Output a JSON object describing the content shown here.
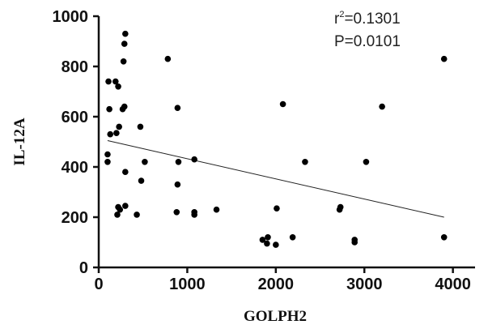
{
  "chart_data": {
    "type": "scatter",
    "xlabel": "GOLPH2",
    "ylabel": "IL-12A",
    "xlim": [
      0,
      4250
    ],
    "ylim": [
      0,
      1000
    ],
    "xticks": [
      "0",
      "1000",
      "2000",
      "3000",
      "4000"
    ],
    "yticks": [
      "0",
      "200",
      "400",
      "600",
      "800",
      "1000"
    ],
    "xtick_values": [
      0,
      1000,
      2000,
      3000,
      4000
    ],
    "ytick_values": [
      0,
      200,
      400,
      600,
      800,
      1000
    ],
    "grid": false,
    "annotation": {
      "r_prefix": "r",
      "r_sup": "2",
      "r_value": "=0.1301",
      "p_text": "P=0.0101"
    },
    "trendline": {
      "x": [
        100,
        3900
      ],
      "y": [
        505,
        200
      ]
    },
    "points": [
      {
        "x": 100,
        "y": 450
      },
      {
        "x": 100,
        "y": 420
      },
      {
        "x": 110,
        "y": 740
      },
      {
        "x": 120,
        "y": 630
      },
      {
        "x": 130,
        "y": 530
      },
      {
        "x": 190,
        "y": 740
      },
      {
        "x": 200,
        "y": 535
      },
      {
        "x": 210,
        "y": 210
      },
      {
        "x": 220,
        "y": 240
      },
      {
        "x": 220,
        "y": 720
      },
      {
        "x": 230,
        "y": 560
      },
      {
        "x": 240,
        "y": 230
      },
      {
        "x": 270,
        "y": 630
      },
      {
        "x": 280,
        "y": 820
      },
      {
        "x": 290,
        "y": 890
      },
      {
        "x": 290,
        "y": 640
      },
      {
        "x": 300,
        "y": 930
      },
      {
        "x": 300,
        "y": 380
      },
      {
        "x": 300,
        "y": 245
      },
      {
        "x": 430,
        "y": 210
      },
      {
        "x": 470,
        "y": 560
      },
      {
        "x": 480,
        "y": 345
      },
      {
        "x": 520,
        "y": 420
      },
      {
        "x": 780,
        "y": 830
      },
      {
        "x": 880,
        "y": 220
      },
      {
        "x": 890,
        "y": 635
      },
      {
        "x": 890,
        "y": 330
      },
      {
        "x": 900,
        "y": 420
      },
      {
        "x": 1080,
        "y": 430
      },
      {
        "x": 1080,
        "y": 220
      },
      {
        "x": 1080,
        "y": 210
      },
      {
        "x": 1330,
        "y": 230
      },
      {
        "x": 1850,
        "y": 110
      },
      {
        "x": 1900,
        "y": 95
      },
      {
        "x": 1910,
        "y": 120
      },
      {
        "x": 2000,
        "y": 90
      },
      {
        "x": 2010,
        "y": 235
      },
      {
        "x": 2080,
        "y": 650
      },
      {
        "x": 2190,
        "y": 120
      },
      {
        "x": 2330,
        "y": 420
      },
      {
        "x": 2720,
        "y": 230
      },
      {
        "x": 2730,
        "y": 240
      },
      {
        "x": 2890,
        "y": 110
      },
      {
        "x": 2890,
        "y": 100
      },
      {
        "x": 3020,
        "y": 420
      },
      {
        "x": 3200,
        "y": 640
      },
      {
        "x": 3900,
        "y": 830
      },
      {
        "x": 3900,
        "y": 120
      }
    ]
  }
}
